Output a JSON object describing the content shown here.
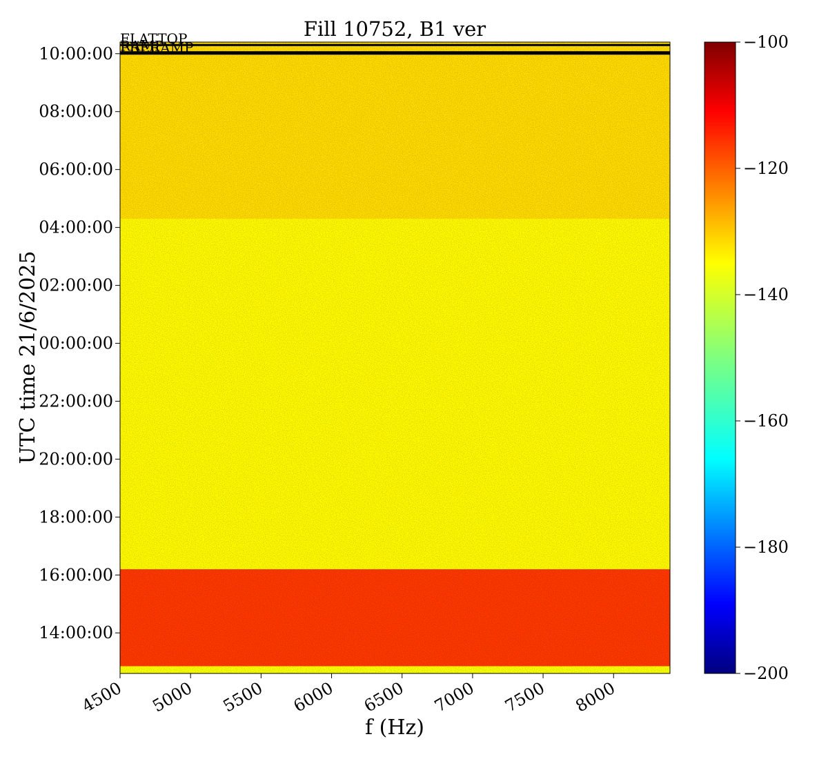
{
  "chart_data": {
    "type": "heatmap",
    "title": "Fill 10752, B1 ver",
    "xlabel": "f (Hz)",
    "ylabel": "UTC time 21/6/2025",
    "xlim": [
      4500,
      8400
    ],
    "x_ticks": [
      "4500",
      "5000",
      "5500",
      "6000",
      "6500",
      "7000",
      "7500",
      "8000"
    ],
    "x_tick_values": [
      4500,
      5000,
      5500,
      6000,
      6500,
      7000,
      7500,
      8000
    ],
    "y_ticks": [
      "10:00:00",
      "08:00:00",
      "06:00:00",
      "04:00:00",
      "02:00:00",
      "00:00:00",
      "22:00:00",
      "20:00:00",
      "18:00:00",
      "16:00:00",
      "14:00:00"
    ],
    "y_tick_hours": [
      34,
      32,
      30,
      28,
      26,
      24,
      22,
      20,
      18,
      16,
      14
    ],
    "y_range_hours": [
      12.6,
      34.4
    ],
    "colorbar": {
      "colormap": "jet",
      "range": [
        -200,
        -100
      ],
      "ticks": [
        "−100",
        "−120",
        "−140",
        "−160",
        "−180",
        "−200"
      ],
      "tick_values": [
        -100,
        -120,
        -140,
        -160,
        -180,
        -200
      ]
    },
    "regions": [
      {
        "from_hours": 12.85,
        "to_hours": 16.2,
        "level": -118
      },
      {
        "from_hours": 16.2,
        "to_hours": 28.3,
        "level": -137
      },
      {
        "from_hours": 28.3,
        "to_hours": 34.4,
        "level": -134
      }
    ],
    "phase_markers": [
      {
        "label": "FLATTOP",
        "hours": 34.3
      },
      {
        "label": "RAMP",
        "hours": 34.05
      },
      {
        "label": "PRERAMP",
        "hours": 34.0
      }
    ]
  }
}
